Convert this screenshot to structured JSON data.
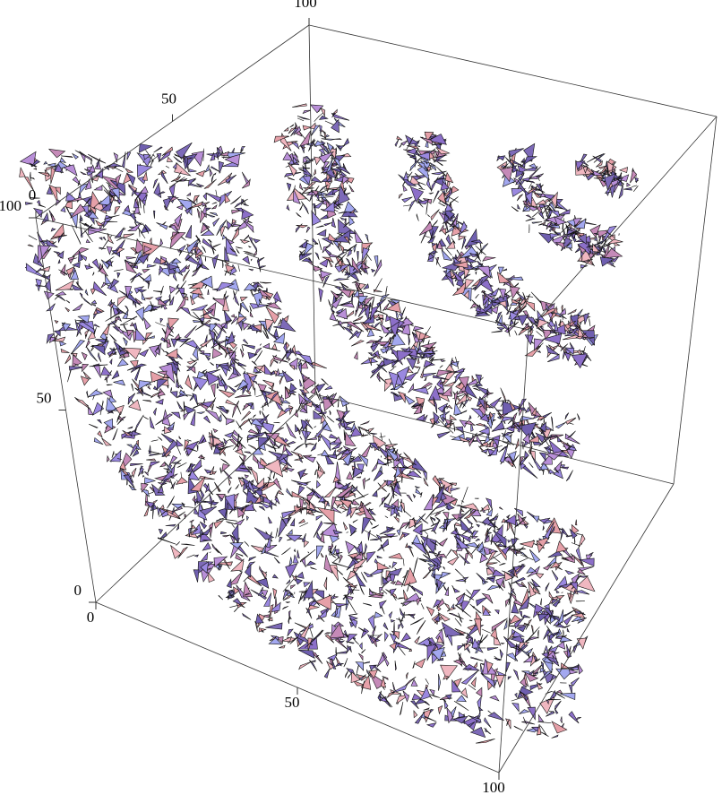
{
  "chart_data": {
    "type": "contour3d",
    "xlim": [
      0,
      100
    ],
    "xticks": [
      0,
      50,
      100
    ],
    "ylim": [
      0,
      100
    ],
    "yticks": [
      0,
      50,
      100
    ],
    "zlim": [
      0,
      100
    ],
    "zticks": [
      0,
      50,
      100
    ]
  }
}
